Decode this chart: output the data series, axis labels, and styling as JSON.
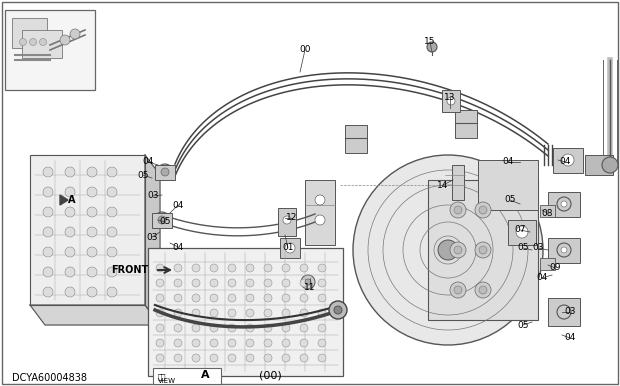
{
  "bg_color": "#ffffff",
  "border_color": "#777777",
  "line_color": "#444444",
  "gray_light": "#d8d8d8",
  "gray_mid": "#b0b0b0",
  "gray_dark": "#888888",
  "footer_code": "DCYA60004838",
  "footer_ref": "(00)",
  "front_label": "FRONT",
  "parts": [
    [
      "00",
      305,
      50
    ],
    [
      "01",
      288,
      248
    ],
    [
      "03",
      153,
      196
    ],
    [
      "03",
      152,
      237
    ],
    [
      "03",
      538,
      248
    ],
    [
      "03",
      570,
      312
    ],
    [
      "04",
      148,
      162
    ],
    [
      "04",
      178,
      205
    ],
    [
      "04",
      178,
      247
    ],
    [
      "04",
      508,
      162
    ],
    [
      "04",
      565,
      162
    ],
    [
      "04",
      542,
      278
    ],
    [
      "04",
      570,
      338
    ],
    [
      "05",
      143,
      175
    ],
    [
      "05",
      165,
      222
    ],
    [
      "05",
      510,
      200
    ],
    [
      "05",
      523,
      248
    ],
    [
      "05",
      523,
      325
    ],
    [
      "07",
      520,
      230
    ],
    [
      "08",
      547,
      213
    ],
    [
      "09",
      555,
      268
    ],
    [
      "11",
      310,
      287
    ],
    [
      "12",
      292,
      218
    ],
    [
      "13",
      450,
      97
    ],
    [
      "14",
      443,
      185
    ],
    [
      "15",
      430,
      42
    ]
  ]
}
